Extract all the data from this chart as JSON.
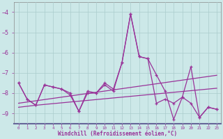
{
  "xlabel": "Windchill (Refroidissement éolien,°C)",
  "x_hours": [
    0,
    1,
    2,
    3,
    4,
    5,
    6,
    7,
    8,
    9,
    10,
    11,
    12,
    13,
    14,
    15,
    16,
    17,
    18,
    19,
    20,
    21,
    22,
    23
  ],
  "line_main1": [
    -7.5,
    -8.3,
    -8.6,
    -7.6,
    -7.7,
    -7.8,
    -8.1,
    -8.9,
    -8.0,
    -8.0,
    -7.5,
    -7.8,
    -6.5,
    -4.1,
    -6.2,
    -6.3,
    -8.5,
    -8.3,
    -8.5,
    -8.2,
    -8.5,
    -9.2,
    -8.7,
    -8.8
  ],
  "line_main2": [
    -7.5,
    -8.3,
    -8.6,
    -7.6,
    -7.7,
    -7.8,
    -8.0,
    -8.9,
    -7.9,
    -8.0,
    -7.6,
    -7.9,
    -6.5,
    -4.1,
    -6.2,
    -6.3,
    -7.1,
    -7.9,
    -9.3,
    -8.2,
    -6.7,
    -9.2,
    -8.7,
    -8.8
  ],
  "line_trend1": [
    -8.5,
    -8.44,
    -8.38,
    -8.32,
    -8.26,
    -8.2,
    -8.14,
    -8.08,
    -8.02,
    -7.96,
    -7.9,
    -7.84,
    -7.78,
    -7.72,
    -7.66,
    -7.6,
    -7.54,
    -7.48,
    -7.42,
    -7.36,
    -7.3,
    -7.24,
    -7.18,
    -7.12
  ],
  "line_trend2": [
    -8.7,
    -8.65,
    -8.6,
    -8.56,
    -8.52,
    -8.48,
    -8.44,
    -8.4,
    -8.36,
    -8.32,
    -8.28,
    -8.24,
    -8.2,
    -8.16,
    -8.12,
    -8.08,
    -8.04,
    -8.0,
    -7.96,
    -7.92,
    -7.88,
    -7.84,
    -7.8,
    -7.76
  ],
  "line_color": "#993399",
  "bg_color": "#cce8e8",
  "plot_bg": "#cce8e8",
  "grid_color": "#aacccc",
  "border_color": "#666699",
  "text_color": "#993399",
  "ylim": [
    -9.5,
    -3.5
  ],
  "yticks": [
    -9,
    -8,
    -7,
    -6,
    -5,
    -4
  ],
  "xlim": [
    -0.5,
    23.5
  ]
}
